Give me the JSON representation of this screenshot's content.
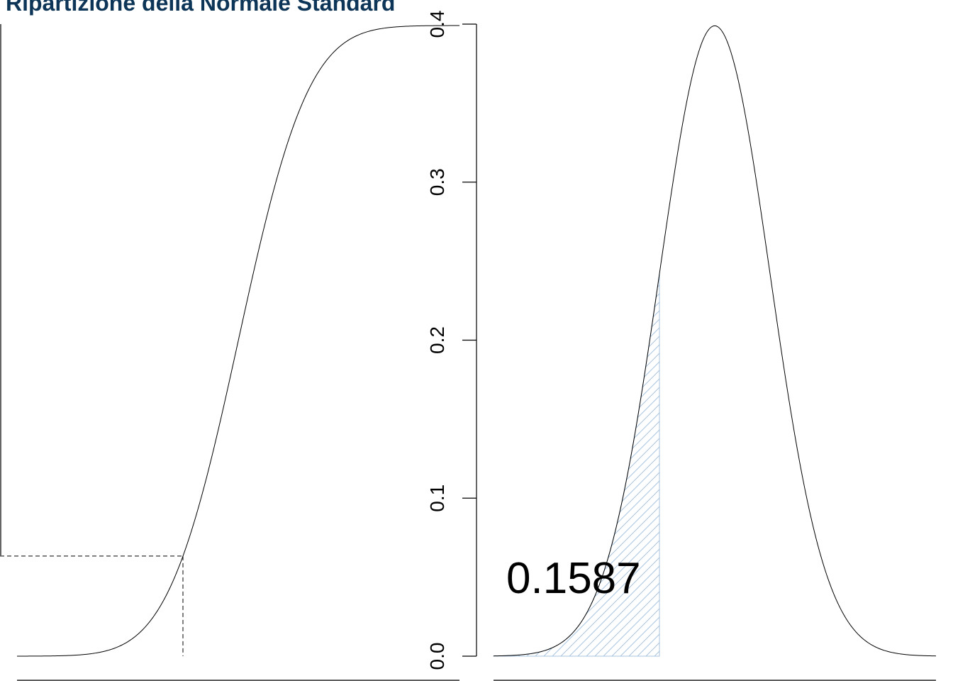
{
  "title": "Ripartizione della Normale Standard",
  "chart_data": [
    {
      "panel": "left",
      "type": "line",
      "function": "normal_cdf",
      "xlim": [
        -4,
        4
      ],
      "ylim": [
        0,
        1
      ],
      "highlight_x": -1,
      "highlight_y": 0.1587,
      "axes": {
        "y_axis_visible": true,
        "y_tick_labels": []
      },
      "colors": {
        "curve": "#000000",
        "guide": "#000000"
      }
    },
    {
      "panel": "right",
      "type": "area",
      "function": "normal_pdf",
      "xlim": [
        -4,
        4
      ],
      "ylim": [
        0,
        0.4
      ],
      "yticks": [
        "0.0",
        "0.1",
        "0.2",
        "0.3",
        "0.4"
      ],
      "shaded_interval": [
        -4,
        -1
      ],
      "shaded_area_label": "0.1587",
      "colors": {
        "curve": "#000000",
        "hatch": "#a9c4df"
      }
    }
  ]
}
